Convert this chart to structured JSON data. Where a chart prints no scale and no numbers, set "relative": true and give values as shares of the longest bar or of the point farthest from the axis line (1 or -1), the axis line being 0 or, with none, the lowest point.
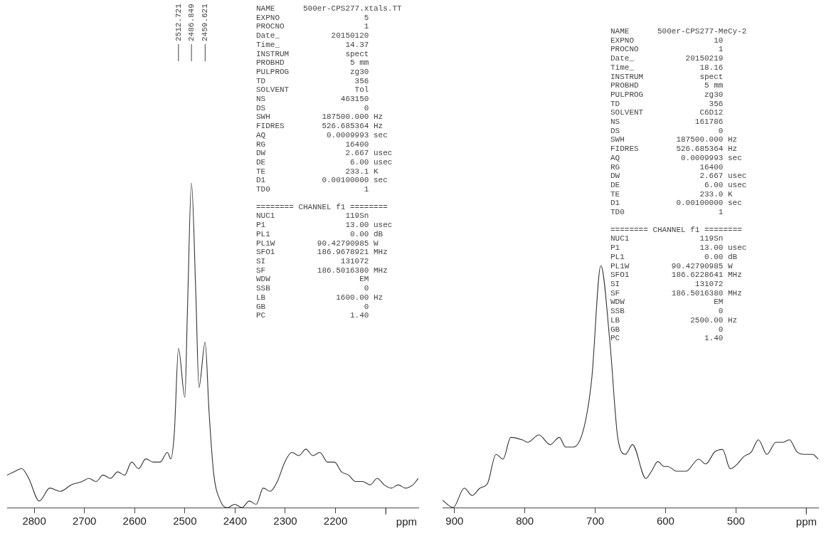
{
  "chart_data": [
    {
      "type": "line",
      "relative": true,
      "xlabel": "ppm",
      "xlim": [
        2854,
        2035
      ],
      "xticks": [
        2800,
        2700,
        2600,
        2500,
        2400,
        2300,
        2200,
        {
          "value": 2100,
          "label": null
        }
      ],
      "grid": false,
      "legend": false,
      "series": [
        {
          "color": "#333333",
          "x": [
            2854,
            2840,
            2825,
            2811,
            2790,
            2769,
            2748,
            2726,
            2705,
            2691,
            2677,
            2663,
            2648,
            2634,
            2620,
            2606,
            2592,
            2578,
            2563,
            2549,
            2535,
            2528,
            2521,
            2512.721,
            2500,
            2495,
            2486.849,
            2478,
            2472,
            2459.621,
            2452,
            2443,
            2429,
            2415,
            2401,
            2386,
            2372,
            2358,
            2344,
            2330,
            2316,
            2301,
            2287,
            2273,
            2259,
            2245,
            2231,
            2216,
            2202,
            2188,
            2174,
            2160,
            2146,
            2131,
            2117,
            2103,
            2089,
            2075,
            2061,
            2046,
            2035
          ],
          "values": [
            0.1,
            0.11,
            0.12,
            0.09,
            0.02,
            0.06,
            0.05,
            0.07,
            0.08,
            0.09,
            0.08,
            0.1,
            0.09,
            0.11,
            0.1,
            0.14,
            0.12,
            0.15,
            0.14,
            0.14,
            0.17,
            0.15,
            0.23,
            0.49,
            0.34,
            0.6,
            1,
            0.65,
            0.37,
            0.51,
            0.3,
            0.11,
            0.02,
            0,
            0.01,
            0,
            0.02,
            0.01,
            0.06,
            0.05,
            0.08,
            0.14,
            0.17,
            0.16,
            0.18,
            0.16,
            0.17,
            0.14,
            0.14,
            0.11,
            0.1,
            0.08,
            0.08,
            0.07,
            0.09,
            0.07,
            0.06,
            0.07,
            0.06,
            0.07,
            0.09
          ]
        }
      ],
      "annotations": [
        {
          "text": "2512.721",
          "x": 2512.721
        },
        {
          "text": "2486.849",
          "x": 2486.849
        },
        {
          "text": "2459.621",
          "x": 2459.621
        },
        "NAME  500er-CPS277.xtals.TT",
        "EXPNO  5",
        "PROCNO  1",
        "Date_  20150120",
        "Time_  14.37",
        "INSTRUM  spect",
        "PROBHD  5 mm",
        "PULPROG  zg30",
        "TD  356",
        "SOLVENT  Tol",
        "NS  463150",
        "DS  0",
        "SWH  187500.000  Hz",
        "FIDRES  526.685364  Hz",
        "AQ  0.0009993  sec",
        "RG  16400",
        "DW  2.667  usec",
        "DE  6.00  usec",
        "TE  233.1  K",
        "D1  0.00100000  sec",
        "TD0  1",
        "======== CHANNEL f1 ========",
        "NUC1  119Sn",
        "P1  13.00  usec",
        "PL1  0.00  dB",
        "PL1W  90.42790985  W",
        "SFO1  186.9678921  MHz",
        "SI  131072",
        "SF  186.5016380  MHz",
        "WDW  EM",
        "SSB  0",
        "LB  1600.00  Hz",
        "GB  0",
        "PC  1.40"
      ]
    },
    {
      "type": "line",
      "relative": true,
      "xlabel": "ppm",
      "xlim": [
        917,
        383
      ],
      "xticks": [
        900,
        800,
        700,
        600,
        500,
        {
          "value": 400,
          "label": null
        }
      ],
      "grid": false,
      "legend": false,
      "series": [
        {
          "color": "#333333",
          "x": [
            917,
            902,
            886,
            875,
            864,
            853,
            841,
            831,
            820,
            804,
            796,
            780,
            764,
            751,
            742,
            731,
            716,
            705,
            692,
            679,
            668,
            657,
            647,
            628,
            620,
            611,
            602,
            597,
            584,
            571,
            553,
            543,
            530,
            519,
            508,
            498,
            489,
            478,
            468,
            456,
            443,
            433,
            424,
            413,
            402,
            391,
            383
          ],
          "values": [
            0.03,
            0,
            0.08,
            0.05,
            0.08,
            0.1,
            0.22,
            0.2,
            0.29,
            0.28,
            0.27,
            0.3,
            0.26,
            0.29,
            0.25,
            0.25,
            0.33,
            0.53,
            1,
            0.68,
            0.29,
            0.22,
            0.26,
            0.12,
            0.15,
            0.19,
            0.17,
            0.17,
            0.15,
            0.15,
            0.2,
            0.18,
            0.23,
            0.24,
            0.16,
            0.18,
            0.21,
            0.23,
            0.28,
            0.22,
            0.27,
            0.27,
            0.28,
            0.23,
            0.22,
            0.22,
            0.2
          ]
        }
      ],
      "annotations": [
        "NAME  500er-CPS277-MeCy-2",
        "EXPNO  10",
        "PROCNO  1",
        "Date_  20150219",
        "Time_  18.16",
        "INSTRUM  spect",
        "PROBHD  5 mm",
        "PULPROG  zg30",
        "TD  356",
        "SOLVENT  C6D12",
        "NS  161786",
        "DS  0",
        "SWH  187500.000  Hz",
        "FIDRES  526.685364  Hz",
        "AQ  0.0009993  sec",
        "RG  16400",
        "DW  2.667  usec",
        "DE  6.00  usec",
        "TE  233.0  K",
        "D1  0.00100000  sec",
        "TD0  1",
        "======== CHANNEL f1 ========",
        "NUC1  119Sn",
        "P1  13.00  usec",
        "PL1  0.00  dB",
        "PL1W  90.42790985  W",
        "SFO1  186.6228641  MHz",
        "SI  131072",
        "SF  186.5016380  MHz",
        "WDW  EM",
        "SSB  0",
        "LB  2500.00  Hz",
        "GB  0",
        "PC  1.40"
      ]
    }
  ]
}
